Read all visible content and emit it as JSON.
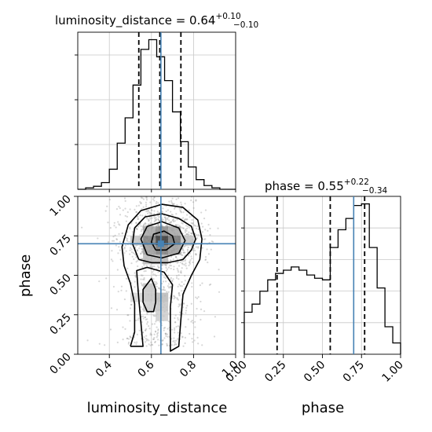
{
  "chart_data": {
    "type": "corner",
    "parameters": [
      "luminosity_distance",
      "phase"
    ],
    "axis_labels": {
      "x": [
        "luminosity_distance",
        "phase"
      ],
      "y": [
        "phase"
      ]
    },
    "truths": {
      "luminosity_distance": 0.645,
      "phase": 0.7
    },
    "panels": [
      {
        "kind": "histogram",
        "parameter": "luminosity_distance",
        "title_text": "luminosity_distance = 0.64",
        "title_sup": "+0.10",
        "title_sub": "−0.10",
        "xlim": [
          0.25,
          1.0
        ],
        "bins_x": [
          0.25,
          0.2875,
          0.325,
          0.3625,
          0.4,
          0.4375,
          0.475,
          0.5125,
          0.55,
          0.5875,
          0.625,
          0.6625,
          0.7,
          0.7375,
          0.775,
          0.8125,
          0.85,
          0.8875,
          0.925,
          0.9625,
          1.0
        ],
        "counts": [
          0,
          2,
          4,
          9,
          27,
          62,
          96,
          140,
          188,
          201,
          178,
          146,
          104,
          64,
          30,
          13,
          5,
          2,
          0,
          0
        ],
        "quantiles": [
          0.54,
          0.64,
          0.74
        ]
      },
      {
        "kind": "histogram",
        "parameter": "phase",
        "title_text": "phase = 0.55",
        "title_sup": "+0.22",
        "title_sub": "−0.34",
        "xlim": [
          0.0,
          1.0
        ],
        "xticks": [
          "0.00",
          "0.25",
          "0.50",
          "0.75",
          "1.00"
        ],
        "bins_x": [
          0.0,
          0.05,
          0.1,
          0.15,
          0.2,
          0.25,
          0.3,
          0.35,
          0.4,
          0.45,
          0.5,
          0.55,
          0.6,
          0.65,
          0.7,
          0.75,
          0.8,
          0.85,
          0.9,
          0.95,
          1.0
        ],
        "counts": [
          2.6,
          3.1,
          3.9,
          4.6,
          5.0,
          5.2,
          5.4,
          5.2,
          4.9,
          4.7,
          4.6,
          6.6,
          7.7,
          8.4,
          9.2,
          9.3,
          6.6,
          4.1,
          1.7,
          0.7
        ],
        "quantiles": [
          0.21,
          0.55,
          0.77
        ]
      },
      {
        "kind": "density2d",
        "x": "luminosity_distance",
        "y": "phase",
        "xlim": [
          0.25,
          1.0
        ],
        "ylim": [
          0.0,
          1.0
        ],
        "xticks": [
          "0.4",
          "0.6",
          "0.8",
          "1.0"
        ],
        "yticks": [
          "0.00",
          "0.25",
          "0.50",
          "0.75",
          "1.00"
        ],
        "density_cells": [
          {
            "x": 0.59,
            "y": 0.78,
            "level": 0.35
          },
          {
            "x": 0.65,
            "y": 0.78,
            "level": 0.5
          },
          {
            "x": 0.71,
            "y": 0.78,
            "level": 0.35
          },
          {
            "x": 0.59,
            "y": 0.72,
            "level": 0.55
          },
          {
            "x": 0.65,
            "y": 0.72,
            "level": 0.9
          },
          {
            "x": 0.71,
            "y": 0.72,
            "level": 0.6
          },
          {
            "x": 0.59,
            "y": 0.66,
            "level": 0.4
          },
          {
            "x": 0.65,
            "y": 0.66,
            "level": 0.55
          },
          {
            "x": 0.71,
            "y": 0.66,
            "level": 0.4
          },
          {
            "x": 0.53,
            "y": 0.72,
            "level": 0.2
          },
          {
            "x": 0.77,
            "y": 0.72,
            "level": 0.2
          },
          {
            "x": 0.59,
            "y": 0.6,
            "level": 0.25
          },
          {
            "x": 0.65,
            "y": 0.6,
            "level": 0.25
          },
          {
            "x": 0.59,
            "y": 0.42,
            "level": 0.2
          },
          {
            "x": 0.65,
            "y": 0.36,
            "level": 0.25
          },
          {
            "x": 0.59,
            "y": 0.36,
            "level": 0.2
          },
          {
            "x": 0.59,
            "y": 0.3,
            "level": 0.15
          },
          {
            "x": 0.65,
            "y": 0.3,
            "level": 0.2
          },
          {
            "x": 0.65,
            "y": 0.24,
            "level": 0.15
          },
          {
            "x": 0.53,
            "y": 0.36,
            "level": 0.1
          }
        ],
        "contours": [
          [
            [
              0.62,
              0.66
            ],
            [
              0.67,
              0.66
            ],
            [
              0.71,
              0.7
            ],
            [
              0.7,
              0.75
            ],
            [
              0.66,
              0.78
            ],
            [
              0.61,
              0.76
            ],
            [
              0.6,
              0.71
            ],
            [
              0.62,
              0.66
            ]
          ],
          [
            [
              0.58,
              0.63
            ],
            [
              0.65,
              0.61
            ],
            [
              0.73,
              0.64
            ],
            [
              0.76,
              0.72
            ],
            [
              0.73,
              0.8
            ],
            [
              0.65,
              0.84
            ],
            [
              0.58,
              0.81
            ],
            [
              0.55,
              0.73
            ],
            [
              0.58,
              0.63
            ]
          ],
          [
            [
              0.54,
              0.6
            ],
            [
              0.6,
              0.58
            ],
            [
              0.68,
              0.58
            ],
            [
              0.75,
              0.6
            ],
            [
              0.79,
              0.66
            ],
            [
              0.81,
              0.73
            ],
            [
              0.79,
              0.81
            ],
            [
              0.73,
              0.86
            ],
            [
              0.65,
              0.89
            ],
            [
              0.57,
              0.87
            ],
            [
              0.52,
              0.8
            ],
            [
              0.51,
              0.7
            ],
            [
              0.54,
              0.6
            ]
          ],
          [
            [
              0.6,
              0.48
            ],
            [
              0.62,
              0.41
            ],
            [
              0.62,
              0.33
            ],
            [
              0.61,
              0.27
            ],
            [
              0.58,
              0.27
            ],
            [
              0.56,
              0.33
            ],
            [
              0.56,
              0.41
            ],
            [
              0.6,
              0.48
            ]
          ],
          [
            [
              0.5,
              0.05
            ],
            [
              0.52,
              0.14
            ],
            [
              0.52,
              0.32
            ],
            [
              0.5,
              0.45
            ],
            [
              0.47,
              0.56
            ],
            [
              0.46,
              0.68
            ],
            [
              0.49,
              0.82
            ],
            [
              0.55,
              0.91
            ],
            [
              0.65,
              0.95
            ],
            [
              0.75,
              0.93
            ],
            [
              0.82,
              0.85
            ],
            [
              0.84,
              0.73
            ],
            [
              0.83,
              0.6
            ],
            [
              0.79,
              0.5
            ],
            [
              0.75,
              0.38
            ],
            [
              0.74,
              0.22
            ],
            [
              0.73,
              0.05
            ],
            [
              0.69,
              0.02
            ],
            [
              0.69,
              0.1
            ],
            [
              0.69,
              0.3
            ],
            [
              0.7,
              0.44
            ],
            [
              0.66,
              0.52
            ],
            [
              0.58,
              0.55
            ],
            [
              0.53,
              0.53
            ],
            [
              0.54,
              0.35
            ],
            [
              0.55,
              0.2
            ],
            [
              0.56,
              0.05
            ],
            [
              0.5,
              0.05
            ]
          ]
        ]
      }
    ],
    "grid": true,
    "colors": {
      "line": "#000000",
      "truth": "#4682b4",
      "grid": "#c8c8c8",
      "scatter": "#8c8c8c"
    }
  }
}
